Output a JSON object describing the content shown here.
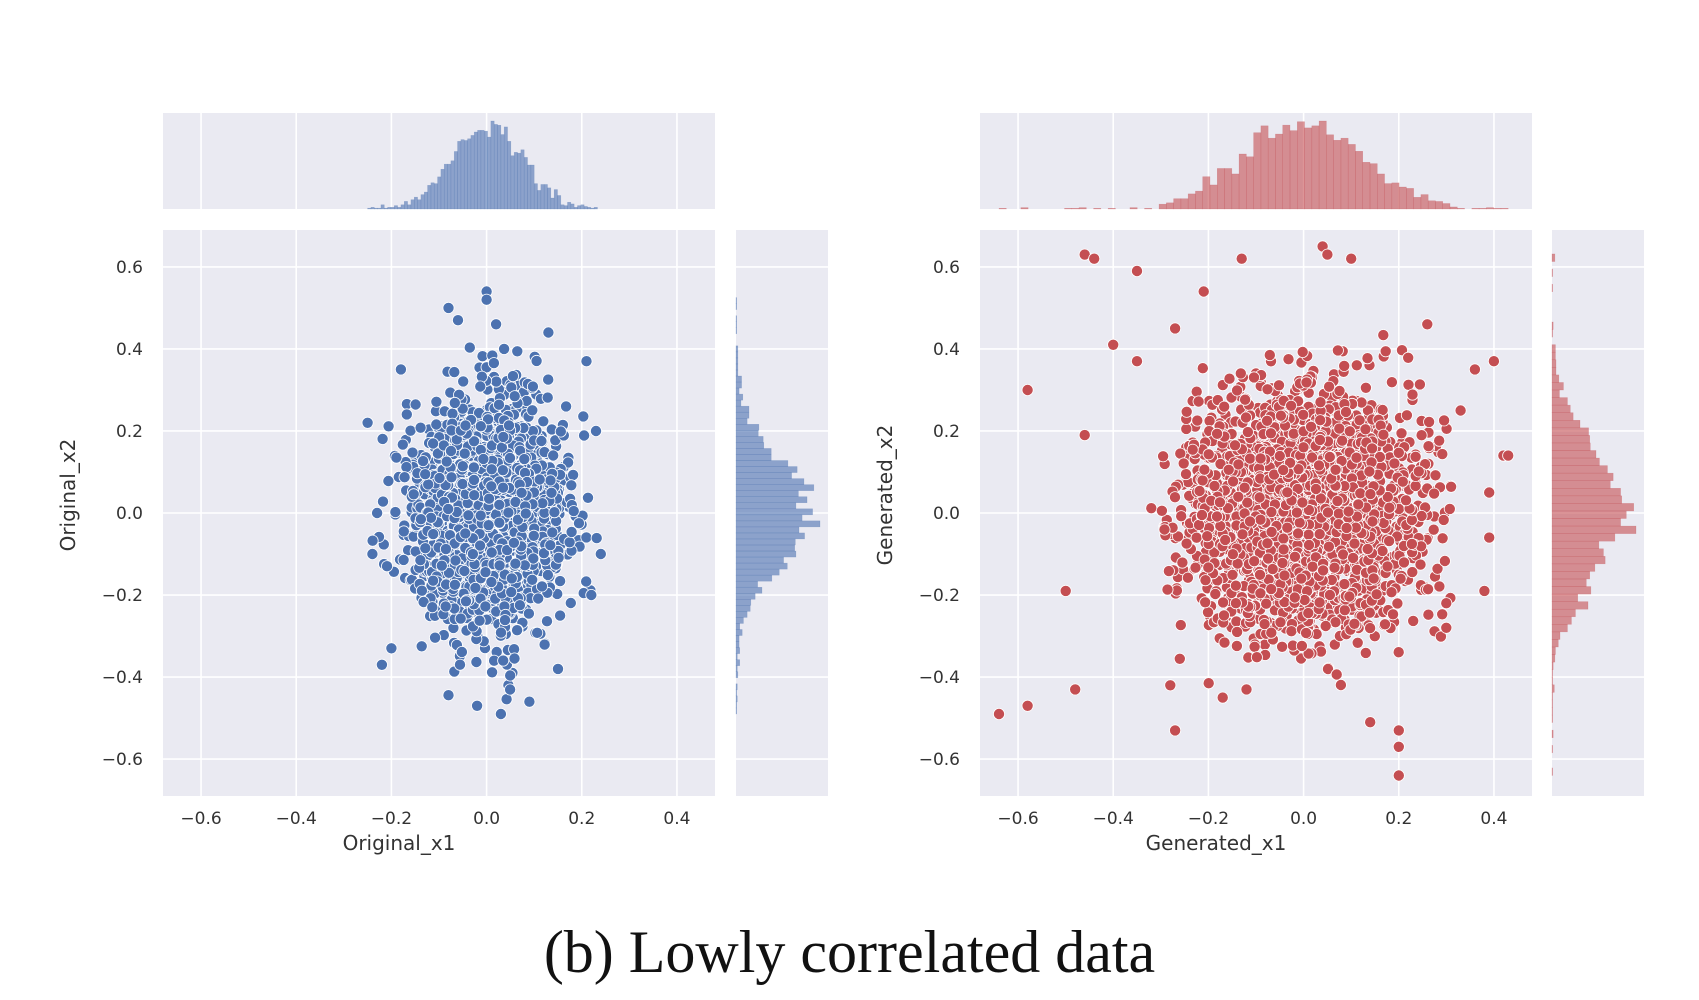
{
  "caption": "(b)   Lowly correlated data",
  "chart_data": [
    {
      "type": "scatter",
      "marginal": "histogram",
      "xlabel": "Original_x1",
      "ylabel": "Original_x2",
      "xlim": [
        -0.68,
        0.48
      ],
      "ylim": [
        -0.69,
        0.69
      ],
      "xticks": [
        -0.6,
        -0.4,
        -0.2,
        0.0,
        0.2,
        0.4
      ],
      "yticks": [
        -0.6,
        -0.4,
        -0.2,
        0.0,
        0.2,
        0.4,
        0.6
      ],
      "xtick_labels": [
        "−0.6",
        "−0.4",
        "−0.2",
        "0.0",
        "0.2",
        "0.4"
      ],
      "ytick_labels": [
        "−0.6",
        "−0.4",
        "−0.2",
        "0.0",
        "0.2",
        "0.4",
        "0.6"
      ],
      "grid": true,
      "color": "#4c72b0",
      "distribution": {
        "x_mean": 0.0,
        "x_std": 0.075,
        "y_mean": 0.0,
        "y_std": 0.13,
        "x_range": [
          -0.25,
          0.24
        ],
        "y_range": [
          -0.49,
          0.54
        ]
      },
      "points": [
        [
          -0.25,
          0.22
        ],
        [
          -0.24,
          -0.1
        ],
        [
          0.0,
          0.54
        ],
        [
          0.0,
          0.52
        ],
        [
          -0.08,
          0.5
        ],
        [
          -0.06,
          0.47
        ],
        [
          -0.02,
          -0.47
        ],
        [
          0.03,
          -0.49
        ],
        [
          0.13,
          0.44
        ],
        [
          0.21,
          0.37
        ],
        [
          0.23,
          0.2
        ],
        [
          0.24,
          -0.1
        ],
        [
          -0.22,
          -0.37
        ],
        [
          0.09,
          -0.46
        ],
        [
          -0.18,
          0.35
        ],
        [
          0.15,
          -0.38
        ],
        [
          -0.2,
          -0.33
        ],
        [
          0.22,
          -0.2
        ],
        [
          -0.23,
          0.0
        ],
        [
          0.02,
          0.46
        ]
      ]
    },
    {
      "type": "scatter",
      "marginal": "histogram",
      "xlabel": "Generated_x1",
      "ylabel": "Generated_x2",
      "xlim": [
        -0.68,
        0.48
      ],
      "ylim": [
        -0.69,
        0.69
      ],
      "xticks": [
        -0.6,
        -0.4,
        -0.2,
        0.0,
        0.2,
        0.4
      ],
      "yticks": [
        -0.6,
        -0.4,
        -0.2,
        0.0,
        0.2,
        0.4,
        0.6
      ],
      "xtick_labels": [
        "−0.6",
        "−0.4",
        "−0.2",
        "0.0",
        "0.2",
        "0.4"
      ],
      "ytick_labels": [
        "−0.6",
        "−0.4",
        "−0.2",
        "0.0",
        "0.2",
        "0.4",
        "0.6"
      ],
      "grid": true,
      "color": "#c44e52",
      "distribution": {
        "x_mean": 0.0,
        "x_std": 0.13,
        "y_mean": 0.0,
        "y_std": 0.15,
        "x_range": [
          -0.64,
          0.43
        ],
        "y_range": [
          -0.64,
          0.65
        ]
      },
      "points": [
        [
          -0.64,
          -0.49
        ],
        [
          -0.58,
          -0.47
        ],
        [
          -0.58,
          0.3
        ],
        [
          -0.46,
          0.63
        ],
        [
          -0.44,
          0.62
        ],
        [
          -0.35,
          0.59
        ],
        [
          -0.13,
          0.62
        ],
        [
          0.04,
          0.65
        ],
        [
          0.05,
          0.63
        ],
        [
          0.1,
          0.62
        ],
        [
          -0.21,
          0.54
        ],
        [
          0.2,
          -0.64
        ],
        [
          0.2,
          -0.57
        ],
        [
          0.2,
          -0.53
        ],
        [
          0.42,
          0.14
        ],
        [
          0.43,
          0.14
        ],
        [
          0.4,
          0.37
        ],
        [
          0.36,
          0.35
        ],
        [
          0.39,
          0.05
        ],
        [
          0.38,
          -0.19
        ],
        [
          0.39,
          -0.06
        ],
        [
          -0.27,
          -0.53
        ],
        [
          -0.5,
          -0.19
        ],
        [
          -0.48,
          -0.43
        ],
        [
          -0.46,
          0.19
        ],
        [
          -0.4,
          0.41
        ],
        [
          -0.27,
          0.45
        ],
        [
          0.26,
          0.46
        ],
        [
          0.33,
          0.25
        ],
        [
          -0.35,
          0.37
        ],
        [
          -0.28,
          -0.42
        ],
        [
          -0.17,
          -0.45
        ],
        [
          -0.12,
          -0.43
        ],
        [
          0.14,
          -0.51
        ],
        [
          0.3,
          -0.28
        ],
        [
          0.3,
          -0.22
        ]
      ]
    }
  ]
}
